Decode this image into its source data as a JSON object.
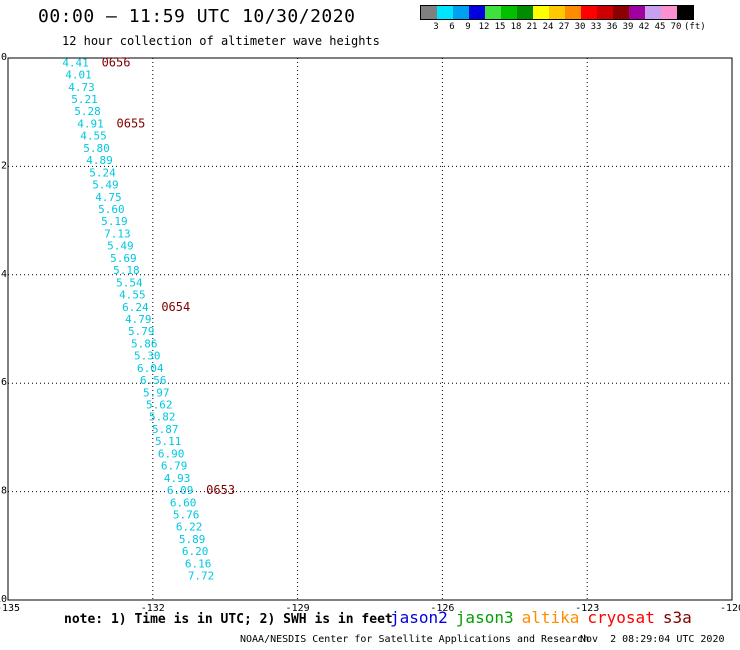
{
  "header": {
    "title": "00:00 — 11:59 UTC 10/30/2020",
    "subtitle": "12 hour collection of altimeter wave heights"
  },
  "legend": {
    "swatches": [
      {
        "color": "#808080"
      },
      {
        "color": "#00e5ff"
      },
      {
        "color": "#00a0f0"
      },
      {
        "color": "#0000e0"
      },
      {
        "color": "#40e040"
      },
      {
        "color": "#00c000"
      },
      {
        "color": "#008c00"
      },
      {
        "color": "#ffff00"
      },
      {
        "color": "#ffc800"
      },
      {
        "color": "#ff8c00"
      },
      {
        "color": "#ff0000"
      },
      {
        "color": "#cc0000"
      },
      {
        "color": "#8c0000"
      },
      {
        "color": "#a000a0"
      },
      {
        "color": "#c8a0f0"
      },
      {
        "color": "#ff90d0"
      },
      {
        "color": "#000000"
      }
    ],
    "labels": [
      "3",
      "6",
      "9",
      "12",
      "15",
      "18",
      "21",
      "24",
      "27",
      "30",
      "33",
      "36",
      "39",
      "42",
      "45",
      "70",
      "(ft)"
    ]
  },
  "map": {
    "x_ticks": [
      "-135",
      "-132",
      "-129",
      "-126",
      "-123",
      "-120"
    ],
    "y_ticks": [
      "0",
      "-2",
      "-4",
      "-6",
      "-8",
      "-10"
    ],
    "lon_range": [
      -135,
      -120
    ],
    "lat_range": [
      -10,
      0
    ],
    "grid": "dotted",
    "track_color": "#00c8e0",
    "time_color": "#800000",
    "wave_heights": [
      "4.41",
      "4.01",
      "4.73",
      "5.21",
      "5.28",
      "4.91",
      "4.55",
      "5.80",
      "4.89",
      "5.24",
      "5.49",
      "4.75",
      "5.60",
      "5.19",
      "7.13",
      "5.49",
      "5.69",
      "5.18",
      "5.54",
      "4.55",
      "6.24",
      "4.79",
      "5.79",
      "5.86",
      "5.30",
      "6.04",
      "6.56",
      "5.97",
      "5.62",
      "5.82",
      "5.87",
      "5.11",
      "6.90",
      "6.79",
      "4.93",
      "6.09",
      "6.60",
      "5.76",
      "6.22",
      "5.89",
      "6.20",
      "6.16",
      "7.72"
    ],
    "time_labels": [
      {
        "label": "0656",
        "after_index": 0
      },
      {
        "label": "0655",
        "after_index": 5
      },
      {
        "label": "0654",
        "after_index": 20
      },
      {
        "label": "0653",
        "after_index": 35
      }
    ]
  },
  "footer": {
    "note": "note: 1) Time is in UTC; 2) SWH is in feet",
    "satellites": [
      {
        "name": "jason2",
        "color": "#0000e0"
      },
      {
        "name": "jason3",
        "color": "#00a000"
      },
      {
        "name": "altika",
        "color": "#ff8c00"
      },
      {
        "name": "cryosat",
        "color": "#ff0000"
      },
      {
        "name": "s3a",
        "color": "#800000"
      }
    ],
    "credit": "NOAA/NESDIS Center for Satellite Applications and Research",
    "timestamp": "Nov  2 08:29:04 UTC 2020"
  }
}
